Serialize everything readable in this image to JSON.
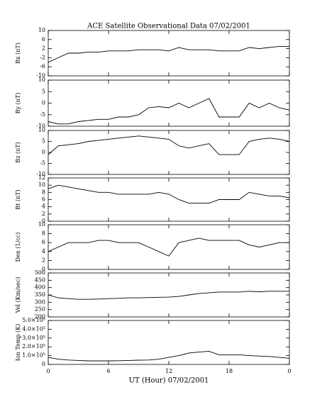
{
  "chart_data": [
    {
      "type": "line",
      "title": "ACE Satellite Observational Data   07/02/2001",
      "ylabel": "Bx (nT)",
      "color": "#000000",
      "x": [
        0,
        1,
        2,
        3,
        4,
        5,
        6,
        7,
        8,
        9,
        10,
        11,
        12,
        13,
        14,
        15,
        16,
        17,
        18,
        19,
        20,
        21,
        22,
        23,
        24
      ],
      "values": [
        -4,
        -2,
        0,
        0,
        0.5,
        0.5,
        1,
        1,
        1,
        1.5,
        1.5,
        1.5,
        1,
        2.5,
        1.5,
        1.5,
        1.5,
        1,
        1,
        1,
        2.5,
        2,
        2.5,
        3,
        3
      ],
      "xlim": [
        0,
        24
      ],
      "ylim": [
        -10,
        10
      ],
      "yticks": [
        -10,
        -6,
        -2,
        2,
        6,
        10
      ]
    },
    {
      "type": "line",
      "ylabel": "By (nT)",
      "color": "#000000",
      "x": [
        0,
        1,
        2,
        3,
        4,
        5,
        6,
        7,
        8,
        9,
        10,
        11,
        12,
        13,
        14,
        15,
        16,
        17,
        18,
        19,
        20,
        21,
        22,
        23,
        24
      ],
      "values": [
        -8,
        -9,
        -9,
        -8,
        -7.5,
        -7,
        -7,
        -6,
        -6,
        -5,
        -2,
        -1.5,
        -2,
        0,
        -2,
        0,
        2,
        -6,
        -6,
        -6,
        0,
        -2,
        0,
        -2,
        -3
      ],
      "xlim": [
        0,
        24
      ],
      "ylim": [
        -10,
        10
      ],
      "yticks": [
        -10,
        -5,
        0,
        5,
        10
      ]
    },
    {
      "type": "line",
      "ylabel": "Bz (nT)",
      "color": "#000000",
      "x": [
        0,
        1,
        2,
        3,
        4,
        5,
        6,
        7,
        8,
        9,
        10,
        11,
        12,
        13,
        14,
        15,
        16,
        17,
        18,
        19,
        20,
        21,
        22,
        23,
        24
      ],
      "values": [
        -1,
        3,
        3.5,
        4,
        5,
        5.5,
        6,
        6.5,
        7,
        7.5,
        7,
        6.5,
        6,
        3,
        2,
        3,
        4,
        -1,
        -1,
        -1,
        5,
        6,
        6.5,
        6,
        5
      ],
      "xlim": [
        0,
        24
      ],
      "ylim": [
        -10,
        10
      ],
      "yticks": [
        -10,
        -5,
        0,
        5,
        10
      ]
    },
    {
      "type": "line",
      "ylabel": "Bt (nT)",
      "color": "#000000",
      "x": [
        0,
        1,
        2,
        3,
        4,
        5,
        6,
        7,
        8,
        9,
        10,
        11,
        12,
        13,
        14,
        15,
        16,
        17,
        18,
        19,
        20,
        21,
        22,
        23,
        24
      ],
      "values": [
        9,
        10,
        9.5,
        9,
        8.5,
        8,
        8,
        7.5,
        7.5,
        7.5,
        7.5,
        8,
        7.5,
        6,
        5,
        5,
        5,
        6,
        6,
        6,
        8,
        7.5,
        7,
        7,
        6.5
      ],
      "xlim": [
        0,
        24
      ],
      "ylim": [
        0,
        12
      ],
      "yticks": [
        0,
        2,
        4,
        6,
        8,
        10,
        12
      ]
    },
    {
      "type": "line",
      "ylabel": "Den (1/cc)",
      "color": "#000000",
      "x": [
        0,
        1,
        2,
        3,
        4,
        5,
        6,
        7,
        8,
        9,
        10,
        11,
        12,
        13,
        14,
        15,
        16,
        17,
        18,
        19,
        20,
        21,
        22,
        23,
        24
      ],
      "values": [
        4,
        5,
        6,
        6,
        6,
        6.5,
        6.5,
        6,
        6,
        6,
        5,
        4,
        3,
        6,
        6.5,
        7,
        6.5,
        6.5,
        6.5,
        6.5,
        5.5,
        5,
        5.5,
        6,
        6
      ],
      "xlim": [
        0,
        24
      ],
      "ylim": [
        0,
        10
      ],
      "yticks": [
        0,
        2,
        4,
        6,
        8,
        10
      ]
    },
    {
      "type": "line",
      "ylabel": "Vel (Km/sec)",
      "color": "#000000",
      "x": [
        0,
        1,
        2,
        3,
        4,
        5,
        6,
        7,
        8,
        9,
        10,
        11,
        12,
        13,
        14,
        15,
        16,
        17,
        18,
        19,
        20,
        21,
        22,
        23,
        24
      ],
      "values": [
        350,
        330,
        325,
        320,
        320,
        322,
        325,
        327,
        330,
        330,
        332,
        334,
        335,
        340,
        350,
        360,
        365,
        370,
        370,
        370,
        375,
        372,
        375,
        375,
        375
      ],
      "xlim": [
        0,
        24
      ],
      "ylim": [
        200,
        500
      ],
      "yticks": [
        200,
        250,
        300,
        350,
        400,
        450,
        500
      ]
    },
    {
      "type": "line",
      "ylabel": "Ion Temp (K)",
      "xlabel": "UT (Hour)  07/02/2001",
      "color": "#000000",
      "x": [
        0,
        1,
        2,
        3,
        4,
        5,
        6,
        7,
        8,
        9,
        10,
        11,
        12,
        13,
        14,
        15,
        16,
        17,
        18,
        19,
        20,
        21,
        22,
        23,
        24
      ],
      "values": [
        80000,
        60000,
        50000,
        45000,
        40000,
        40000,
        40000,
        42000,
        45000,
        48000,
        50000,
        60000,
        80000,
        100000,
        130000,
        140000,
        150000,
        110000,
        110000,
        110000,
        100000,
        95000,
        90000,
        80000,
        70000
      ],
      "xlim": [
        0,
        24
      ],
      "ylim": [
        0,
        500000
      ],
      "yticks": [
        0,
        {
          "value": 100000,
          "label": "1.0×10⁵"
        },
        {
          "value": 200000,
          "label": "2.0×10⁵"
        },
        {
          "value": 300000,
          "label": "3.0×10⁵"
        },
        {
          "value": 400000,
          "label": "4.0×10⁵"
        },
        {
          "value": 500000,
          "label": "5.0×10⁵"
        }
      ],
      "xticks": [
        0,
        6,
        12,
        18,
        {
          "value": 24,
          "label": "0"
        }
      ]
    }
  ]
}
